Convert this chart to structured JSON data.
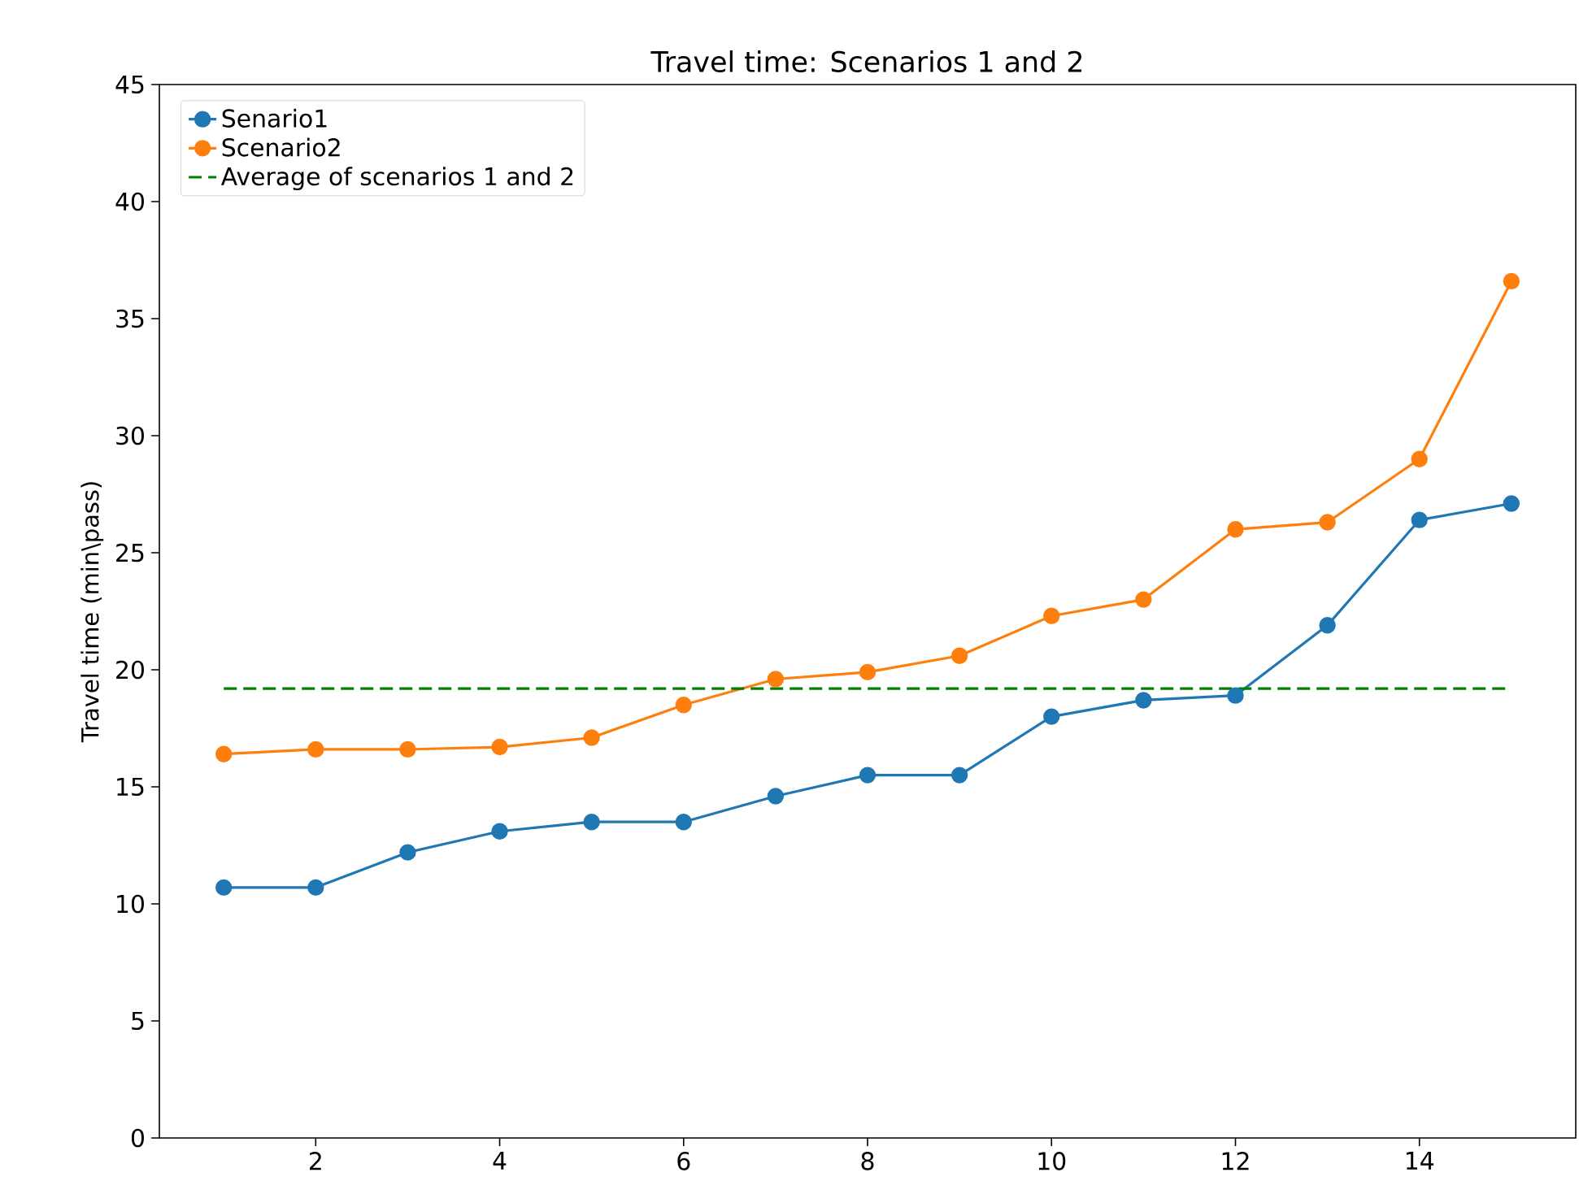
{
  "chart_data": {
    "type": "line",
    "title": "Travel time: Scenarios 1 and 2",
    "ylabel": "Travel time (min\\pass)",
    "x": [
      1,
      2,
      3,
      4,
      5,
      6,
      7,
      8,
      9,
      10,
      11,
      12,
      13,
      14,
      15
    ],
    "series": [
      {
        "name": "Senario1",
        "color": "#1f77b4",
        "marker": "circle",
        "values": [
          10.7,
          10.7,
          12.2,
          13.1,
          13.5,
          13.5,
          14.6,
          15.5,
          15.5,
          18.0,
          18.7,
          18.9,
          21.9,
          26.4,
          27.1
        ]
      },
      {
        "name": "Scenario2",
        "color": "#ff7f0e",
        "marker": "circle",
        "values": [
          16.4,
          16.6,
          16.6,
          16.7,
          17.1,
          18.5,
          19.6,
          19.9,
          20.6,
          22.3,
          23.0,
          26.0,
          26.3,
          29.0,
          36.6
        ]
      },
      {
        "name": "Average of scenarios 1 and 2",
        "color": "#008000",
        "line_style": "dashed",
        "marker": "none",
        "x": [
          1,
          15
        ],
        "values": [
          19.2,
          19.2
        ]
      }
    ],
    "xlim": [
      0.3,
      15.7
    ],
    "ylim": [
      0,
      45
    ],
    "xticks": [
      2,
      4,
      6,
      8,
      10,
      12,
      14
    ],
    "yticks": [
      0,
      5,
      10,
      15,
      20,
      25,
      30,
      35,
      40,
      45
    ],
    "legend": "top left",
    "grid": false
  }
}
